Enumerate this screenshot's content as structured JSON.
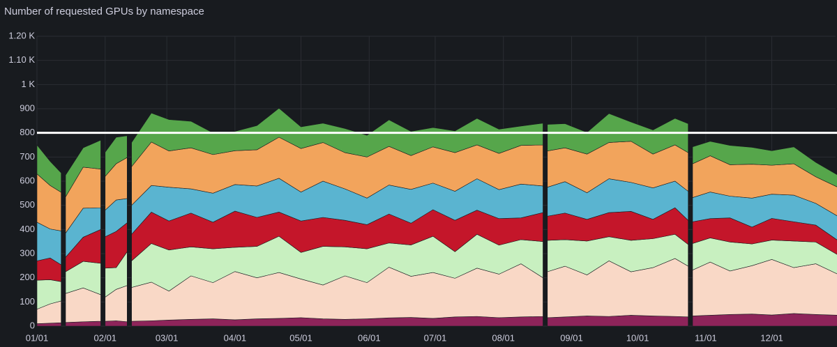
{
  "chart_data": {
    "type": "stacked-area",
    "title": "Number of requested GPUs by namespace",
    "x": [
      0,
      6,
      11,
      12,
      13,
      21,
      29,
      30,
      31,
      36,
      41,
      42,
      43,
      52,
      60,
      70,
      80,
      90,
      100,
      110,
      120,
      130,
      140,
      150,
      160,
      170,
      180,
      190,
      200,
      210,
      220,
      230,
      231,
      232,
      240,
      250,
      260,
      270,
      280,
      290,
      296,
      297,
      298,
      306,
      315,
      325,
      334,
      344,
      354,
      364
    ],
    "series": [
      {
        "color": "#8e245a",
        "values": [
          10,
          12,
          14,
          null,
          15,
          18,
          20,
          null,
          20,
          22,
          18,
          null,
          20,
          22,
          25,
          28,
          30,
          26,
          30,
          32,
          35,
          30,
          28,
          30,
          34,
          36,
          32,
          38,
          40,
          35,
          38,
          40,
          null,
          35,
          38,
          42,
          40,
          45,
          42,
          40,
          38,
          null,
          42,
          45,
          48,
          50,
          46,
          52,
          48,
          45
        ]
      },
      {
        "color": "#f9d8c6",
        "values": [
          60,
          80,
          90,
          null,
          120,
          140,
          110,
          null,
          100,
          130,
          150,
          null,
          140,
          160,
          120,
          180,
          150,
          200,
          170,
          190,
          160,
          140,
          180,
          150,
          210,
          170,
          190,
          160,
          200,
          180,
          220,
          160,
          null,
          190,
          210,
          170,
          230,
          180,
          200,
          240,
          210,
          null,
          190,
          220,
          180,
          200,
          230,
          190,
          210,
          170
        ]
      },
      {
        "color": "#c8f0c0",
        "values": [
          120,
          100,
          80,
          null,
          90,
          110,
          130,
          null,
          120,
          90,
          140,
          null,
          110,
          160,
          170,
          120,
          140,
          100,
          130,
          150,
          110,
          160,
          120,
          140,
          100,
          130,
          150,
          110,
          140,
          120,
          100,
          150,
          null,
          130,
          110,
          140,
          100,
          130,
          120,
          100,
          90,
          null,
          110,
          100,
          120,
          90,
          80,
          110,
          90,
          80
        ]
      },
      {
        "color": "#c4162a",
        "values": [
          80,
          90,
          70,
          null,
          60,
          100,
          140,
          null,
          130,
          150,
          120,
          null,
          110,
          130,
          120,
          140,
          110,
          150,
          120,
          100,
          130,
          120,
          110,
          100,
          120,
          90,
          110,
          130,
          100,
          110,
          90,
          120,
          null,
          100,
          110,
          90,
          100,
          120,
          80,
          110,
          100,
          null,
          90,
          80,
          100,
          70,
          90,
          80,
          70,
          60
        ]
      },
      {
        "color": "#5ab4d0",
        "values": [
          160,
          120,
          140,
          null,
          100,
          120,
          90,
          null,
          110,
          130,
          100,
          null,
          120,
          110,
          140,
          100,
          120,
          110,
          130,
          140,
          120,
          150,
          130,
          110,
          120,
          140,
          110,
          120,
          130,
          120,
          140,
          110,
          null,
          120,
          130,
          110,
          140,
          120,
          130,
          110,
          120,
          null,
          100,
          110,
          90,
          120,
          100,
          110,
          90,
          100
        ]
      },
      {
        "color": "#f2a45c",
        "values": [
          200,
          180,
          160,
          null,
          150,
          170,
          160,
          null,
          140,
          150,
          170,
          null,
          160,
          180,
          150,
          170,
          160,
          140,
          150,
          170,
          180,
          160,
          150,
          170,
          160,
          140,
          150,
          160,
          140,
          150,
          160,
          170,
          null,
          150,
          140,
          160,
          150,
          170,
          140,
          150,
          160,
          null,
          140,
          150,
          130,
          140,
          120,
          130,
          110,
          120
        ]
      },
      {
        "color": "#56a64b",
        "values": [
          120,
          100,
          80,
          null,
          90,
          80,
          120,
          null,
          100,
          110,
          90,
          null,
          100,
          120,
          130,
          110,
          90,
          80,
          100,
          120,
          90,
          80,
          100,
          90,
          110,
          100,
          80,
          90,
          110,
          100,
          80,
          90,
          null,
          110,
          100,
          90,
          120,
          80,
          100,
          110,
          120,
          null,
          70,
          60,
          80,
          70,
          60,
          70,
          60,
          50
        ]
      }
    ],
    "xlim": [
      0,
      363
    ],
    "xticks": [
      {
        "value": 0,
        "label": "01/01"
      },
      {
        "value": 31,
        "label": "02/01"
      },
      {
        "value": 59,
        "label": "03/01"
      },
      {
        "value": 90,
        "label": "04/01"
      },
      {
        "value": 120,
        "label": "05/01"
      },
      {
        "value": 151,
        "label": "06/01"
      },
      {
        "value": 181,
        "label": "07/01"
      },
      {
        "value": 212,
        "label": "08/01"
      },
      {
        "value": 243,
        "label": "09/01"
      },
      {
        "value": 273,
        "label": "10/01"
      },
      {
        "value": 304,
        "label": "11/01"
      },
      {
        "value": 334,
        "label": "12/01"
      }
    ],
    "ylim": [
      0,
      1200
    ],
    "yticks": [
      0,
      100,
      200,
      300,
      400,
      500,
      600,
      700,
      800,
      900,
      {
        "value": 1000,
        "label": "1 K"
      },
      {
        "value": 1100,
        "label": "1.10 K"
      },
      {
        "value": 1200,
        "label": "1.20 K"
      }
    ],
    "threshold": 800,
    "grid": true
  }
}
